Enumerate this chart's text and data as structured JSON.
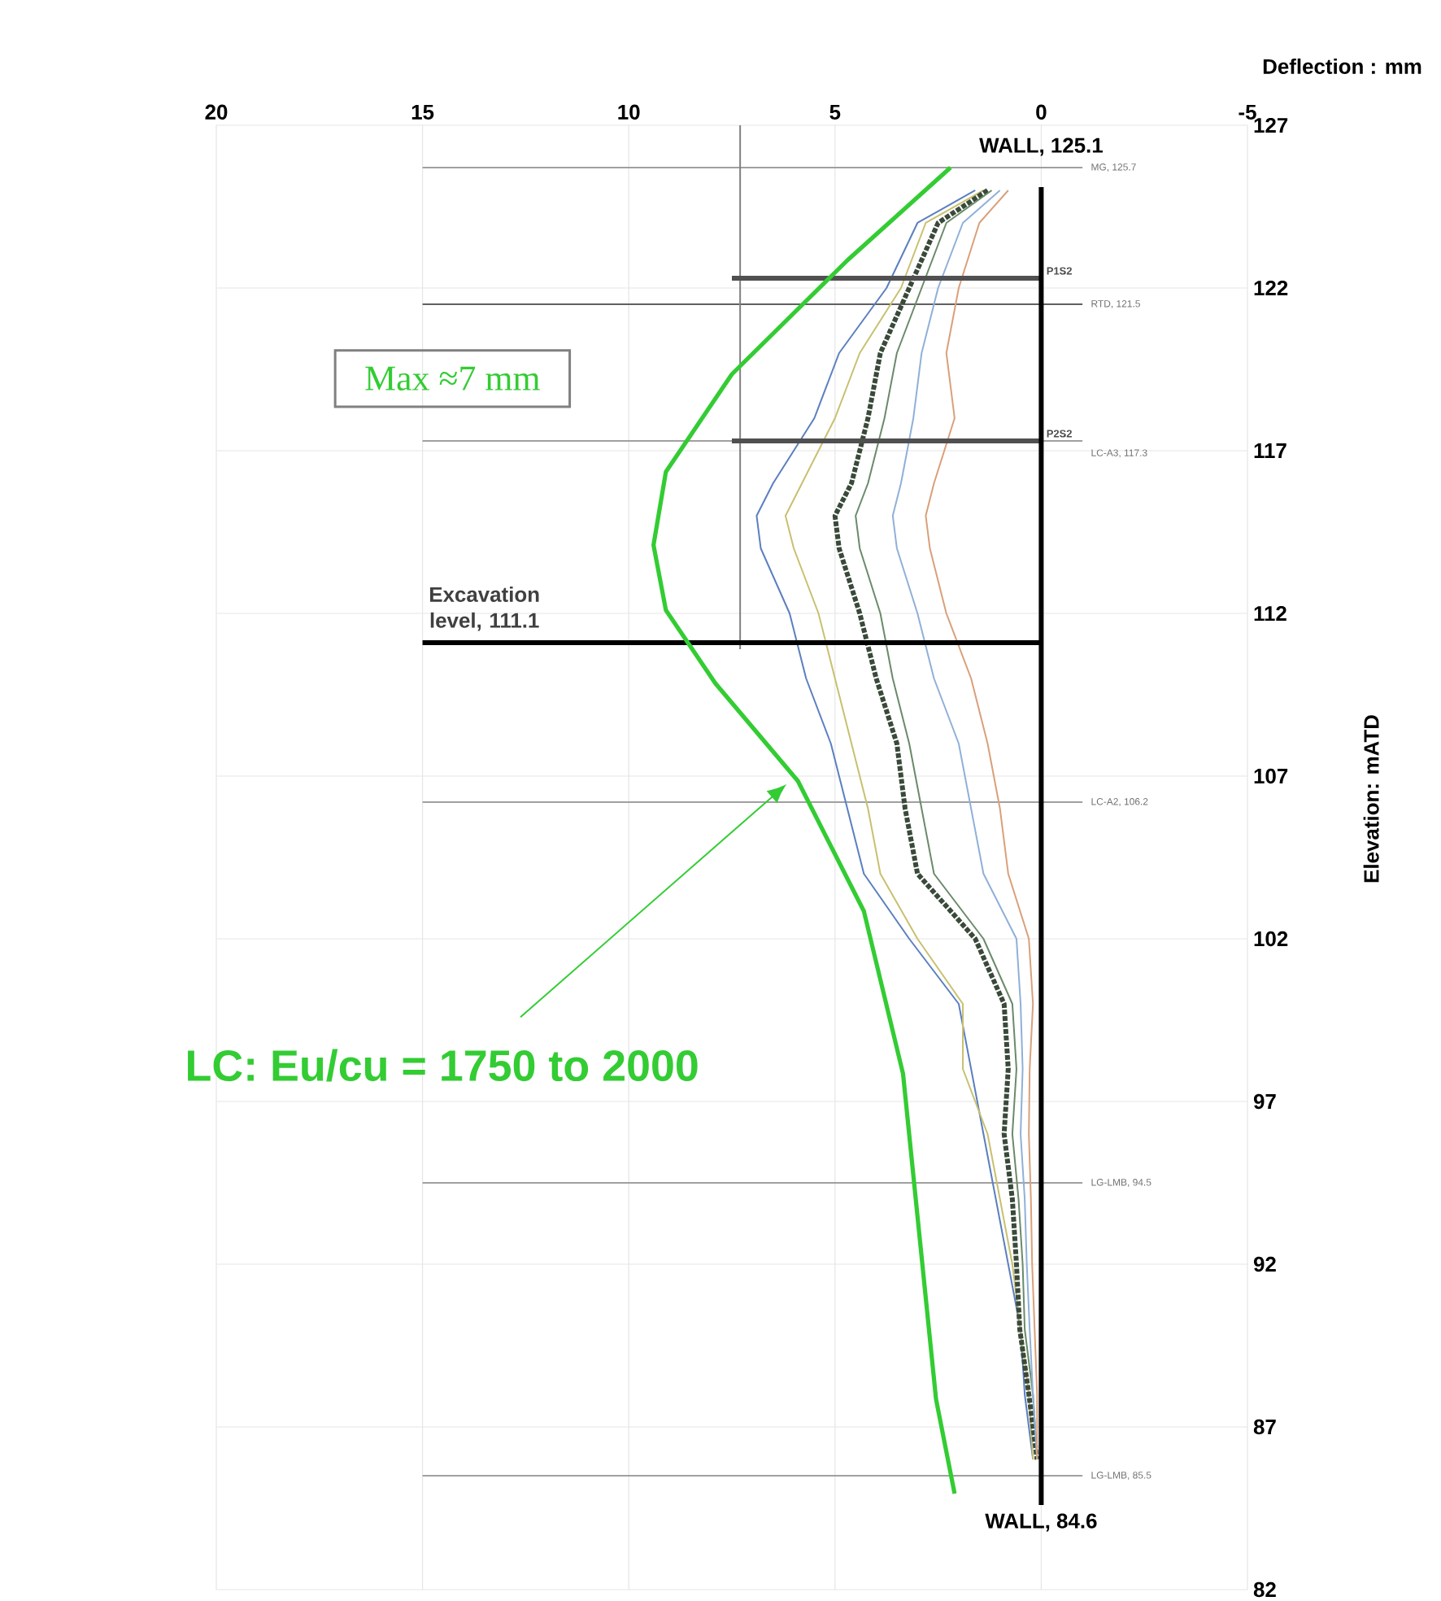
{
  "chart_data": {
    "type": "line",
    "xlabel": "Deflection : mm",
    "ylabel": "Elevation: mATD",
    "xlim": [
      20,
      -5
    ],
    "xticks": [
      20,
      15,
      10,
      5,
      0,
      -5
    ],
    "ylim": [
      82,
      127
    ],
    "yticks": [
      127,
      122,
      117,
      112,
      107,
      102,
      97,
      92,
      87,
      82
    ],
    "grid": true,
    "series": [
      {
        "color": "#a0a0a0",
        "x": [
          15,
          -1
        ],
        "values": [
          125.7,
          125.7
        ]
      },
      {
        "color": "#606060",
        "x": [
          15,
          -1
        ],
        "values": [
          121.5,
          121.5
        ]
      },
      {
        "color": "#a0a0a0",
        "x": [
          15,
          -1
        ],
        "values": [
          117.3,
          117.3
        ]
      },
      {
        "color": "#a0a0a0",
        "x": [
          15,
          -1
        ],
        "values": [
          106.2,
          106.2
        ]
      },
      {
        "color": "#a0a0a0",
        "x": [
          15,
          -1
        ],
        "values": [
          94.5,
          94.5
        ]
      },
      {
        "color": "#a0a0a0",
        "x": [
          15,
          -1
        ],
        "values": [
          85.5,
          85.5
        ]
      },
      {
        "color": "#808080",
        "x": [
          7.3,
          7.3
        ],
        "values": [
          127,
          110.9
        ]
      },
      {
        "color": "#5b7fbf",
        "x": [
          1.6,
          3.0,
          3.75,
          4.9,
          5.5,
          6.5,
          6.9,
          6.8,
          6.1,
          5.7,
          5.1,
          4.7,
          4.3,
          3.2,
          2.0,
          1.7,
          1.4,
          1.1,
          0.8,
          0.5,
          0.4,
          0.2
        ],
        "values": [
          125,
          124,
          122,
          120,
          118,
          116,
          115,
          114,
          112,
          110,
          108,
          106,
          104,
          102,
          100,
          98,
          96,
          94,
          92,
          90,
          88,
          86
        ]
      },
      {
        "color": "#c8c070",
        "x": [
          1.4,
          2.8,
          3.4,
          4.4,
          5.0,
          5.8,
          6.2,
          6.0,
          5.4,
          5.0,
          4.6,
          4.2,
          3.9,
          3.0,
          1.9,
          1.9,
          1.3,
          1.0,
          0.7,
          0.5,
          0.3,
          0.2
        ],
        "values": [
          125,
          124,
          122,
          120,
          118,
          116,
          115,
          114,
          112,
          110,
          108,
          106,
          104,
          102,
          100,
          98,
          96,
          94,
          92,
          90,
          88,
          86
        ]
      },
      {
        "color": "#3a4a3a",
        "line_style": "dotted",
        "x": [
          1.3,
          2.5,
          3.2,
          3.9,
          4.2,
          4.6,
          5.0,
          4.9,
          4.4,
          4.0,
          3.5,
          3.3,
          3.0,
          1.6,
          0.9,
          0.8,
          0.9,
          0.7,
          0.6,
          0.52,
          0.3,
          0.1
        ],
        "values": [
          125,
          124,
          122,
          120,
          118,
          116,
          115,
          114,
          112,
          110,
          108,
          106,
          104,
          102,
          100,
          98,
          96,
          94,
          92,
          90,
          88,
          86
        ]
      },
      {
        "color": "#6a8a6a",
        "x": [
          1.2,
          2.3,
          2.9,
          3.5,
          3.8,
          4.2,
          4.5,
          4.4,
          3.9,
          3.6,
          3.2,
          2.9,
          2.6,
          1.4,
          0.7,
          0.6,
          0.7,
          0.55,
          0.45,
          0.4,
          0.2,
          0.1
        ],
        "values": [
          125,
          124,
          122,
          120,
          118,
          116,
          115,
          114,
          112,
          110,
          108,
          106,
          104,
          102,
          100,
          98,
          96,
          94,
          92,
          90,
          88,
          86
        ]
      },
      {
        "color": "#8fb0d8",
        "x": [
          1.0,
          1.9,
          2.5,
          2.9,
          3.1,
          3.4,
          3.6,
          3.5,
          3.0,
          2.6,
          2.0,
          1.7,
          1.4,
          0.6,
          0.5,
          0.45,
          0.5,
          0.4,
          0.35,
          0.28,
          0.2,
          0.1
        ],
        "values": [
          125,
          124,
          122,
          120,
          118,
          116,
          115,
          114,
          112,
          110,
          108,
          106,
          104,
          102,
          100,
          98,
          96,
          94,
          92,
          90,
          88,
          86
        ]
      },
      {
        "color": "#d9a07a",
        "x": [
          0.8,
          1.5,
          2.0,
          2.3,
          2.1,
          2.6,
          2.8,
          2.7,
          2.3,
          1.7,
          1.3,
          1.0,
          0.8,
          0.3,
          0.2,
          0.28,
          0.3,
          0.25,
          0.22,
          0.16,
          0.1,
          0.1
        ],
        "values": [
          125,
          124,
          122,
          120,
          118,
          116,
          115,
          114,
          112,
          110,
          108,
          106,
          104,
          102,
          100,
          98,
          96,
          94,
          92,
          90,
          88,
          86
        ]
      },
      {
        "color": "#505050",
        "x": [
          7.5,
          0
        ],
        "values": [
          122.3,
          122.3
        ]
      },
      {
        "color": "#505050",
        "x": [
          7.5,
          0
        ],
        "values": [
          117.3,
          117.3
        ]
      },
      {
        "color": "#000000",
        "x": [
          15,
          0
        ],
        "values": [
          111.1,
          111.1
        ]
      },
      {
        "color": "#000000",
        "x": [
          0,
          0
        ],
        "values": [
          125.1,
          84.6
        ]
      },
      {
        "color": "#33cc33",
        "x": [
          2.2,
          4.7,
          7.5,
          9.1,
          9.4,
          9.1,
          7.9,
          5.9,
          4.3,
          3.35,
          2.95,
          2.55,
          2.1
        ],
        "values": [
          125.7,
          122.85,
          119.35,
          116.35,
          114.1,
          112.1,
          109.85,
          106.85,
          102.85,
          97.85,
          92.85,
          87.85,
          84.95
        ]
      }
    ],
    "annotations": [
      {
        "text": "WALL, 125.1",
        "x": 0,
        "y": 125.1
      },
      {
        "text": "WALL, 84.6",
        "x": 0,
        "y": 84.6
      },
      {
        "text": "Excavation level, 111.1",
        "x": 13.5,
        "y": 111.1
      },
      {
        "text": "MG, 125.7",
        "x": -1,
        "y": 125.7
      },
      {
        "text": "P1S2",
        "x": 0,
        "y": 122.3
      },
      {
        "text": "RTD, 121.5",
        "x": -1,
        "y": 121.5
      },
      {
        "text": "P2S2",
        "x": 0,
        "y": 117.3
      },
      {
        "text": "LC-A3, 117.3",
        "x": -1,
        "y": 117.3
      },
      {
        "text": "LC-A2, 106.2",
        "x": -1,
        "y": 106.2
      },
      {
        "text": "LG-LMB, 94.5",
        "x": -1,
        "y": 94.5
      },
      {
        "text": "LG-LMB, 85.5",
        "x": -1,
        "y": 85.5
      },
      "Max ≈7 mm",
      "LC: Eu/cu = 1750 to 2000"
    ]
  }
}
